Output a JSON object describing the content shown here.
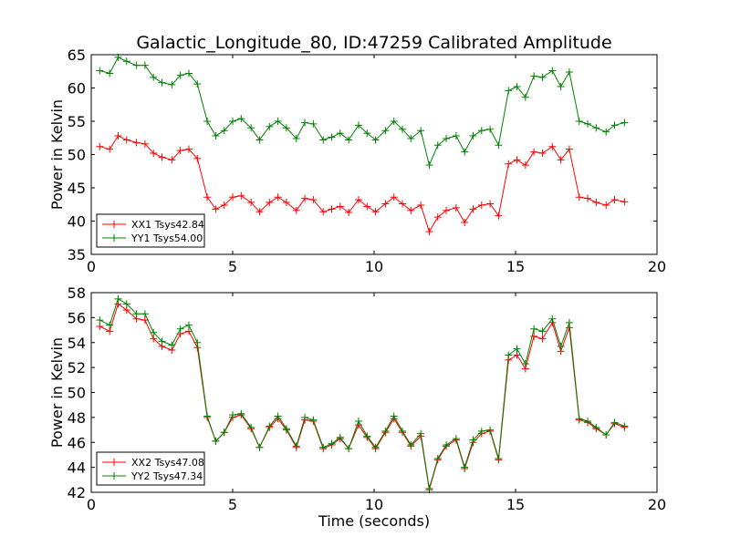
{
  "figure": {
    "title": "Galactic_Longitude_80, ID:47259 Calibrated Amplitude",
    "xlabel": "Time (seconds)"
  },
  "chart_data": [
    {
      "type": "line",
      "ylabel": "Power in Kelvin",
      "xlim": [
        0,
        20
      ],
      "ylim": [
        35,
        65
      ],
      "xticks": [
        0,
        5,
        10,
        15,
        20
      ],
      "yticks": [
        35,
        40,
        45,
        50,
        55,
        60,
        65
      ],
      "grid": false,
      "legend_position": "lower-left",
      "x": [
        0.3,
        0.65,
        0.95,
        1.25,
        1.6,
        1.9,
        2.2,
        2.5,
        2.85,
        3.15,
        3.45,
        3.75,
        4.1,
        4.4,
        4.7,
        5.0,
        5.3,
        5.65,
        5.95,
        6.3,
        6.6,
        6.9,
        7.25,
        7.55,
        7.85,
        8.2,
        8.5,
        8.8,
        9.1,
        9.45,
        9.75,
        10.05,
        10.4,
        10.7,
        11.0,
        11.3,
        11.65,
        11.95,
        12.25,
        12.55,
        12.9,
        13.2,
        13.5,
        13.8,
        14.1,
        14.4,
        14.75,
        15.05,
        15.35,
        15.65,
        15.95,
        16.3,
        16.6,
        16.9,
        17.25,
        17.55,
        17.85,
        18.2,
        18.5,
        18.85
      ],
      "series": [
        {
          "name": "XX1 Tsys42.84",
          "color": "#ff0000",
          "values": [
            51.2,
            50.8,
            52.8,
            52.2,
            51.8,
            51.6,
            50.2,
            49.6,
            49.2,
            50.6,
            50.8,
            49.4,
            43.6,
            41.8,
            42.4,
            43.6,
            43.8,
            42.8,
            41.4,
            42.8,
            43.6,
            42.8,
            41.6,
            43.4,
            43.2,
            41.4,
            41.8,
            42.2,
            41.3,
            43.2,
            42.2,
            41.4,
            42.6,
            43.6,
            42.6,
            41.6,
            42.4,
            38.4,
            40.6,
            41.6,
            42,
            39.8,
            41.8,
            42.4,
            42.6,
            40.8,
            48.6,
            49.2,
            48.4,
            50.4,
            50.2,
            51.2,
            49.2,
            50.8,
            43.6,
            43.4,
            42.8,
            42.4,
            43.2,
            42.9
          ]
        },
        {
          "name": "YY1 Tsys54.00",
          "color": "#008000",
          "values": [
            62.6,
            62.2,
            64.6,
            64.0,
            63.4,
            63.4,
            61.6,
            60.8,
            60.5,
            61.9,
            62.2,
            60.6,
            55.0,
            52.8,
            53.6,
            55.0,
            55.4,
            54.0,
            52.2,
            54.2,
            55.0,
            54.0,
            52.4,
            54.8,
            54.6,
            52.2,
            52.6,
            53.2,
            52.2,
            54.4,
            53.2,
            52.2,
            53.6,
            55.0,
            53.8,
            52.4,
            53.6,
            48.4,
            51.4,
            52.4,
            52.8,
            50.4,
            52.8,
            53.6,
            53.8,
            51.4,
            59.6,
            60.2,
            58.6,
            61.8,
            61.6,
            62.6,
            60.2,
            62.4,
            55.0,
            54.6,
            54.0,
            53.4,
            54.4,
            54.8
          ]
        }
      ]
    },
    {
      "type": "line",
      "ylabel": "Power in Kelvin",
      "xlim": [
        0,
        20
      ],
      "ylim": [
        42,
        58
      ],
      "xticks": [
        0,
        5,
        10,
        15,
        20
      ],
      "yticks": [
        42,
        44,
        46,
        48,
        50,
        52,
        54,
        56,
        58
      ],
      "grid": false,
      "legend_position": "lower-left",
      "x": [
        0.3,
        0.65,
        0.95,
        1.25,
        1.6,
        1.9,
        2.2,
        2.5,
        2.85,
        3.15,
        3.45,
        3.75,
        4.1,
        4.4,
        4.7,
        5.0,
        5.3,
        5.65,
        5.95,
        6.3,
        6.6,
        6.9,
        7.25,
        7.55,
        7.85,
        8.2,
        8.5,
        8.8,
        9.1,
        9.45,
        9.75,
        10.05,
        10.4,
        10.7,
        11.0,
        11.3,
        11.65,
        11.95,
        12.25,
        12.55,
        12.9,
        13.2,
        13.5,
        13.8,
        14.1,
        14.4,
        14.75,
        15.05,
        15.35,
        15.65,
        15.95,
        16.3,
        16.6,
        16.9,
        17.25,
        17.55,
        17.85,
        18.2,
        18.5,
        18.85
      ],
      "series": [
        {
          "name": "XX2 Tsys47.08",
          "color": "#ff0000",
          "values": [
            55.3,
            54.9,
            57.1,
            56.6,
            55.9,
            55.8,
            54.3,
            53.7,
            53.4,
            54.7,
            54.9,
            53.6,
            48.0,
            46.1,
            46.8,
            48.0,
            48.2,
            47.1,
            45.6,
            47.2,
            47.9,
            47.0,
            45.6,
            47.8,
            47.7,
            45.5,
            45.8,
            46.3,
            45.5,
            47.4,
            46.4,
            45.5,
            46.8,
            47.9,
            46.8,
            45.7,
            46.5,
            42.2,
            44.6,
            45.7,
            46.2,
            43.9,
            46.0,
            46.7,
            46.9,
            44.6,
            52.6,
            53.0,
            51.9,
            54.5,
            54.3,
            55.6,
            53.3,
            55.2,
            47.8,
            47.6,
            47.1,
            46.6,
            47.5,
            47.2
          ]
        },
        {
          "name": "YY2 Tsys47.34",
          "color": "#008000",
          "values": [
            55.8,
            55.4,
            57.5,
            57.1,
            56.3,
            56.3,
            54.8,
            54.1,
            53.8,
            55.1,
            55.4,
            54.0,
            48.1,
            46.1,
            46.8,
            48.2,
            48.3,
            47.2,
            45.6,
            47.3,
            48.1,
            47.1,
            45.7,
            48.0,
            47.8,
            45.6,
            45.9,
            46.4,
            45.5,
            47.7,
            46.5,
            45.6,
            46.9,
            48.1,
            46.9,
            45.8,
            46.7,
            42.3,
            44.7,
            45.8,
            46.3,
            44.0,
            46.2,
            46.9,
            47.0,
            44.7,
            53.0,
            53.5,
            52.3,
            55.1,
            54.9,
            55.9,
            53.7,
            55.6,
            47.9,
            47.7,
            47.2,
            46.6,
            47.6,
            47.3
          ]
        }
      ]
    }
  ]
}
